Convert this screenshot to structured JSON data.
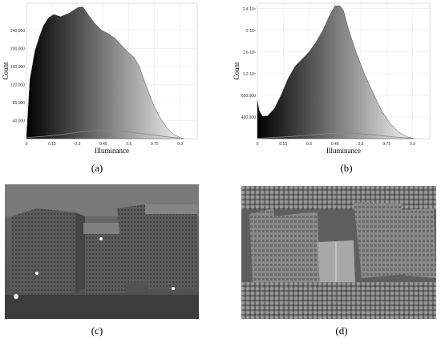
{
  "captions": {
    "a": "(a)",
    "b": "(b)",
    "c": "(c)",
    "d": "(d)"
  },
  "chart_data": [
    {
      "type": "area",
      "panel": "a",
      "xlabel": "Illuminance",
      "ylabel": "Count",
      "xlim": [
        0,
        1
      ],
      "ylim": [
        0,
        300000
      ],
      "xticks": [
        {
          "v": 0,
          "label": "0"
        },
        {
          "v": 0.15,
          "label": "0.15"
        },
        {
          "v": 0.3,
          "label": "0.3"
        },
        {
          "v": 0.45,
          "label": "0.45"
        },
        {
          "v": 0.6,
          "label": "0.6"
        },
        {
          "v": 0.75,
          "label": "0.75"
        },
        {
          "v": 0.9,
          "label": "0.9"
        }
      ],
      "yticks": [
        {
          "v": 40000,
          "label": "40,000"
        },
        {
          "v": 80000,
          "label": "80,000"
        },
        {
          "v": 120000,
          "label": "120,000"
        },
        {
          "v": 160000,
          "label": "160,000"
        },
        {
          "v": 200000,
          "label": "200,000"
        },
        {
          "v": 240000,
          "label": "240,000"
        }
      ],
      "grid": true,
      "x": [
        0,
        0.02,
        0.05,
        0.08,
        0.1,
        0.13,
        0.16,
        0.2,
        0.25,
        0.3,
        0.33,
        0.36,
        0.4,
        0.44,
        0.48,
        0.52,
        0.56,
        0.6,
        0.63,
        0.66,
        0.7,
        0.74,
        0.78,
        0.82,
        0.86,
        0.9,
        0.92
      ],
      "values": [
        0,
        130000,
        195000,
        230000,
        250000,
        268000,
        275000,
        270000,
        278000,
        290000,
        292000,
        275000,
        255000,
        240000,
        232000,
        222000,
        205000,
        190000,
        180000,
        160000,
        118000,
        78000,
        48000,
        25000,
        10000,
        2000,
        0
      ],
      "secondary_series": {
        "x": [
          0,
          0.1,
          0.2,
          0.3,
          0.4,
          0.5,
          0.6,
          0.7,
          0.8,
          0.9
        ],
        "values": [
          2000,
          5000,
          9000,
          14000,
          18000,
          18000,
          15000,
          10000,
          5000,
          1000
        ]
      }
    },
    {
      "type": "area",
      "panel": "b",
      "xlabel": "Illuminance",
      "ylabel": "Count",
      "xlim": [
        0,
        1
      ],
      "ylim": [
        0,
        2500000
      ],
      "xticks": [
        {
          "v": 0,
          "label": "0"
        },
        {
          "v": 0.15,
          "label": "0.15"
        },
        {
          "v": 0.3,
          "label": "0.3"
        },
        {
          "v": 0.45,
          "label": "0.45"
        },
        {
          "v": 0.6,
          "label": "0.6"
        },
        {
          "v": 0.75,
          "label": "0.75"
        },
        {
          "v": 0.9,
          "label": "0.9"
        }
      ],
      "yticks": [
        {
          "v": 400000,
          "label": "400,000"
        },
        {
          "v": 800000,
          "label": "800,000"
        },
        {
          "v": 1200000,
          "label": "1.2·10⁶"
        },
        {
          "v": 1600000,
          "label": "1.6·10⁶"
        },
        {
          "v": 2000000,
          "label": "2·10⁶"
        },
        {
          "v": 2400000,
          "label": "2.4·10⁶"
        }
      ],
      "grid": true,
      "x": [
        0,
        0.01,
        0.03,
        0.06,
        0.1,
        0.14,
        0.18,
        0.22,
        0.26,
        0.3,
        0.34,
        0.38,
        0.42,
        0.45,
        0.48,
        0.5,
        0.53,
        0.57,
        0.62,
        0.67,
        0.72,
        0.77,
        0.82,
        0.87,
        0.91
      ],
      "values": [
        700000,
        520000,
        410000,
        420000,
        560000,
        820000,
        1120000,
        1340000,
        1470000,
        1600000,
        1780000,
        2000000,
        2280000,
        2450000,
        2450000,
        2360000,
        2000000,
        1620000,
        1200000,
        850000,
        520000,
        280000,
        120000,
        30000,
        0
      ],
      "secondary_series": {
        "x": [
          0,
          0.2,
          0.4,
          0.5,
          0.6,
          0.8,
          0.9
        ],
        "values": [
          5000,
          40000,
          90000,
          110000,
          90000,
          30000,
          5000
        ]
      }
    }
  ],
  "icons": {
    "c": "building-cluster-photo",
    "d": "aerial-city-photo"
  }
}
